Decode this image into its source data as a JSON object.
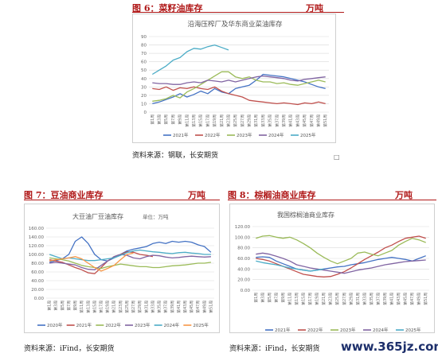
{
  "headers": {
    "fig6_title": "图 6：菜籽油库存",
    "fig6_unit": "万吨",
    "fig7_title": "图 7：豆油商业库存",
    "fig7_unit": "万吨",
    "fig8_title": "图 8：棕榈油商业库存",
    "fig8_unit": "万吨",
    "source1": "资料来源：钢联，长安期货",
    "source2": "资料来源：iFind，长安期货",
    "source3": "资料来源：iFind，长安期货",
    "watermark": "www.365jz.com"
  },
  "chart_data": [
    {
      "type": "line",
      "title": "沿海压榨厂及华东商业菜油库存",
      "ylim": [
        0,
        90
      ],
      "yticks": [
        "0",
        "10",
        "20",
        "30",
        "40",
        "50",
        "60",
        "70",
        "80",
        "90"
      ],
      "x": [
        "第1周",
        "第3周",
        "第5周",
        "第7周",
        "第9周",
        "第11周",
        "第13周",
        "第15周",
        "第17周",
        "第19周",
        "第21周",
        "第23周",
        "第25周",
        "第27周",
        "第29周",
        "第31周",
        "第33周",
        "第35周",
        "第37周",
        "第39周",
        "第41周",
        "第43周",
        "第45周",
        "第47周",
        "第49周",
        "第51周"
      ],
      "series": [
        {
          "name": "2021年",
          "color": "#4472c4",
          "values": [
            10,
            12,
            15,
            18,
            22,
            18,
            21,
            25,
            22,
            28,
            24,
            22,
            28,
            30,
            32,
            38,
            45,
            44,
            43,
            42,
            40,
            38,
            36,
            33,
            30,
            28
          ]
        },
        {
          "name": "2022年",
          "color": "#c0504d",
          "values": [
            28,
            27,
            30,
            26,
            29,
            28,
            30,
            28,
            27,
            30,
            25,
            22,
            20,
            18,
            14,
            13,
            12,
            11,
            10,
            11,
            10,
            9,
            11,
            10,
            12,
            10
          ]
        },
        {
          "name": "2023年",
          "color": "#9bbb59",
          "values": [
            13,
            14,
            16,
            20,
            17,
            24,
            28,
            33,
            38,
            43,
            48,
            48,
            42,
            40,
            42,
            38,
            36,
            36,
            34,
            35,
            33,
            32,
            34,
            36,
            38,
            36
          ]
        },
        {
          "name": "2024年",
          "color": "#8064a2",
          "values": [
            35,
            34,
            34,
            33,
            33,
            35,
            36,
            35,
            38,
            37,
            36,
            38,
            36,
            38,
            40,
            42,
            43,
            42,
            41,
            40,
            38,
            37,
            39,
            40,
            41,
            42
          ]
        },
        {
          "name": "2025年",
          "color": "#4bacc6",
          "values": [
            45,
            50,
            55,
            62,
            65,
            72,
            76,
            75,
            78,
            80,
            77,
            74,
            null,
            null,
            null,
            null,
            null,
            null,
            null,
            null,
            null,
            null,
            null,
            null,
            null,
            null
          ]
        }
      ]
    },
    {
      "type": "line",
      "title": "大豆油厂豆油库存",
      "subtitle": "单位：万吨",
      "ylim": [
        0,
        160
      ],
      "yticks": [
        "0.00",
        "20.00",
        "40.00",
        "60.00",
        "80.00",
        "100.00",
        "120.00",
        "140.00",
        "160.00"
      ],
      "x": [
        "第1周",
        "第3周",
        "第5周",
        "第7周",
        "第9周",
        "第11周",
        "第13周",
        "第15周",
        "第17周",
        "第19周",
        "第21周",
        "第23周",
        "第25周",
        "第27周",
        "第29周",
        "第31周",
        "第33周",
        "第35周",
        "第37周",
        "第39周",
        "第41周",
        "第43周",
        "第45周",
        "第47周",
        "第49周",
        "第51周"
      ],
      "series": [
        {
          "name": "2020年",
          "color": "#4472c4",
          "values": [
            82,
            86,
            90,
            100,
            130,
            140,
            125,
            100,
            88,
            85,
            92,
            100,
            108,
            112,
            115,
            118,
            125,
            128,
            125,
            130,
            128,
            130,
            128,
            122,
            118,
            105
          ]
        },
        {
          "name": "2021年",
          "color": "#c0504d",
          "values": [
            88,
            85,
            82,
            76,
            70,
            65,
            58,
            56,
            70,
            85,
            95,
            100,
            106,
            105,
            100,
            98,
            95,
            null,
            null,
            null,
            null,
            null,
            null,
            null,
            null,
            null
          ]
        },
        {
          "name": "2022年",
          "color": "#9bbb59",
          "values": [
            92,
            90,
            88,
            85,
            80,
            75,
            72,
            70,
            68,
            72,
            75,
            78,
            76,
            74,
            72,
            72,
            70,
            70,
            72,
            74,
            75,
            76,
            78,
            80,
            80,
            82
          ]
        },
        {
          "name": "2023年",
          "color": "#8064a2",
          "values": [
            80,
            82,
            80,
            78,
            76,
            70,
            66,
            65,
            75,
            85,
            95,
            100,
            98,
            92,
            90,
            95,
            98,
            97,
            94,
            92,
            93,
            95,
            96,
            95,
            94,
            95
          ]
        },
        {
          "name": "2024年",
          "color": "#4bacc6",
          "values": [
            100,
            95,
            90,
            92,
            90,
            88,
            86,
            86,
            88,
            90,
            92,
            98,
            104,
            108,
            110,
            108,
            106,
            105,
            103,
            102,
            104,
            105,
            103,
            102,
            100,
            100
          ]
        },
        {
          "name": "2025年",
          "color": "#f79646",
          "values": [
            85,
            88,
            90,
            92,
            95,
            90,
            80,
            70,
            62,
            68,
            75,
            88,
            100,
            103,
            null,
            null,
            null,
            null,
            null,
            null,
            null,
            null,
            null,
            null,
            null,
            null
          ]
        }
      ]
    },
    {
      "type": "line",
      "title": "我国棕榈油商业库存",
      "ylim": [
        0,
        120
      ],
      "yticks": [
        "0.00",
        "20.00",
        "40.00",
        "60.00",
        "80.00",
        "100.00",
        "120.00"
      ],
      "x": [
        "第1周",
        "第3周",
        "第5周",
        "第7周",
        "第9周",
        "第11周",
        "第13周",
        "第15周",
        "第17周",
        "第19周",
        "第21周",
        "第23周",
        "第25周",
        "第27周",
        "第29周",
        "第31周",
        "第33周",
        "第35周",
        "第37周",
        "第39周",
        "第41周",
        "第43周",
        "第45周",
        "第47周",
        "第49周",
        "第51周"
      ],
      "series": [
        {
          "name": "2021年",
          "color": "#4472c4",
          "values": [
            62,
            63,
            62,
            55,
            50,
            45,
            40,
            38,
            36,
            38,
            40,
            42,
            44,
            45,
            48,
            50,
            52,
            55,
            58,
            60,
            62,
            60,
            58,
            55,
            60,
            65
          ]
        },
        {
          "name": "2022年",
          "color": "#c0504d",
          "values": [
            60,
            58,
            55,
            50,
            45,
            40,
            35,
            30,
            28,
            26,
            25,
            26,
            30,
            35,
            42,
            50,
            58,
            65,
            72,
            80,
            85,
            92,
            98,
            100,
            102,
            98
          ]
        },
        {
          "name": "2023年",
          "color": "#9bbb59",
          "values": [
            98,
            102,
            103,
            100,
            98,
            100,
            95,
            88,
            80,
            70,
            62,
            55,
            50,
            55,
            60,
            70,
            72,
            68,
            65,
            70,
            75,
            85,
            92,
            98,
            95,
            90
          ]
        },
        {
          "name": "2024年",
          "color": "#8064a2",
          "values": [
            68,
            70,
            68,
            64,
            60,
            55,
            48,
            45,
            42,
            40,
            38,
            36,
            34,
            32,
            35,
            38,
            40,
            42,
            45,
            48,
            50,
            52,
            54,
            55,
            56,
            57
          ]
        },
        {
          "name": "2025年",
          "color": "#4bacc6",
          "values": [
            55,
            52,
            50,
            48,
            45,
            42,
            40,
            38,
            36,
            38,
            40,
            null,
            null,
            null,
            null,
            null,
            null,
            null,
            null,
            null,
            null,
            null,
            null,
            null,
            null,
            null
          ]
        }
      ]
    }
  ]
}
